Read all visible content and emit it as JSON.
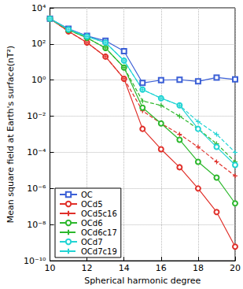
{
  "chart_data": {
    "type": "line",
    "x_label": "Spherical harmonic degree",
    "y_label": "Mean square field at Earth's surface(nT²)",
    "log": "y",
    "grid": true,
    "legend": "lower left",
    "x": [
      10,
      11,
      12,
      13,
      14,
      15,
      16,
      17,
      18,
      19,
      20
    ],
    "xlim": [
      10,
      20
    ],
    "xticks": [
      10,
      12,
      14,
      16,
      18,
      20
    ],
    "ylim": [
      1e-10,
      10000
    ],
    "yticks": [
      {
        "value": 1e-10,
        "label": "10⁻¹⁰"
      },
      {
        "value": 1e-08,
        "label": "10⁻⁸"
      },
      {
        "value": 1e-06,
        "label": "10⁻⁶"
      },
      {
        "value": 0.0001,
        "label": "10⁻⁴"
      },
      {
        "value": 0.01,
        "label": "10⁻²"
      },
      {
        "value": 1,
        "label": "10⁰"
      },
      {
        "value": 100,
        "label": "10²"
      },
      {
        "value": 10000,
        "label": "10⁴"
      }
    ],
    "series": [
      {
        "name": "OC",
        "color": "#3b5fd6",
        "marker": "square",
        "line_style": "solid",
        "values": [
          2500,
          700,
          280,
          150,
          40,
          0.7,
          1.0,
          1.05,
          0.85,
          1.4,
          1.1
        ]
      },
      {
        "name": "OCd5",
        "color": "#e0302a",
        "marker": "circle",
        "line_style": "solid",
        "values": [
          2500,
          500,
          120,
          20,
          1.2,
          0.002,
          0.00015,
          1.5e-05,
          1e-06,
          5e-08,
          6e-10
        ]
      },
      {
        "name": "OCd5c16",
        "color": "#e0302a",
        "marker": "plus",
        "line_style": "dashed",
        "values": [
          2500,
          500,
          120,
          20,
          1.2,
          0.02,
          0.004,
          0.001,
          0.0002,
          3e-05,
          5e-06
        ]
      },
      {
        "name": "OCd6",
        "color": "#2db82d",
        "marker": "circle",
        "line_style": "solid",
        "values": [
          2500,
          600,
          220,
          60,
          5,
          0.03,
          0.004,
          0.0005,
          3e-05,
          4e-06,
          1.5e-07
        ]
      },
      {
        "name": "OCd6c17",
        "color": "#2db82d",
        "marker": "plus",
        "line_style": "dashed",
        "values": [
          2500,
          600,
          220,
          60,
          5,
          0.07,
          0.04,
          0.01,
          0.002,
          0.0003,
          3e-05
        ]
      },
      {
        "name": "OCd7",
        "color": "#22d4d4",
        "marker": "circle",
        "line_style": "solid",
        "values": [
          2500,
          650,
          260,
          120,
          12,
          0.3,
          0.1,
          0.04,
          0.002,
          0.0002,
          2e-05
        ]
      },
      {
        "name": "OCd7c19",
        "color": "#22d4d4",
        "marker": "plus",
        "line_style": "dashed",
        "values": [
          2500,
          650,
          260,
          120,
          12,
          0.3,
          0.1,
          0.04,
          0.005,
          0.001,
          0.0001
        ]
      }
    ]
  }
}
